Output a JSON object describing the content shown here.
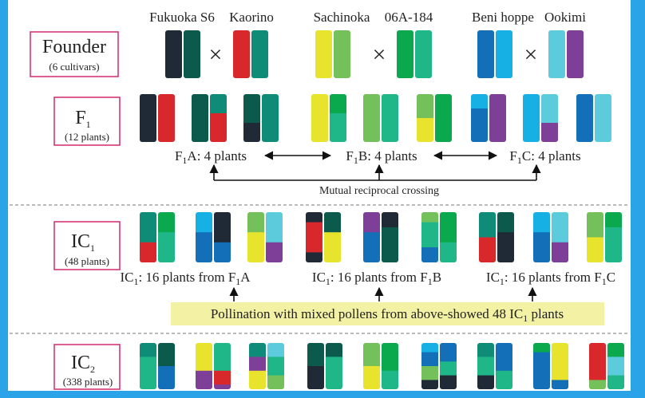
{
  "founder": {
    "label": "Founder",
    "count": "(6 cultivars)",
    "cross": "×",
    "cultivars": [
      "Fukuoka S6",
      "Kaorino",
      "Sachinoka",
      "06A-184",
      "Beni hoppe",
      "Ookimi"
    ]
  },
  "f1": {
    "label": {
      "main": "F",
      "sub": "1"
    },
    "count": "(12 plants)",
    "groups": [
      {
        "main": "F",
        "sub": "1",
        "rest": "A: 4 plants"
      },
      {
        "main": "F",
        "sub": "1",
        "rest": "B: 4 plants"
      },
      {
        "main": "F",
        "sub": "1",
        "rest": "C: 4 plants"
      }
    ],
    "crossing": "Mutual reciprocal crossing"
  },
  "ic1": {
    "label": {
      "main": "IC",
      "sub": "1"
    },
    "count": "(48 plants)",
    "groups": [
      {
        "main": "IC",
        "sub": "1",
        "mid": ": 16 plants from F",
        "sub2": "1",
        "rest": "A"
      },
      {
        "main": "IC",
        "sub": "1",
        "mid": ": 16 plants from F",
        "sub2": "1",
        "rest": "B"
      },
      {
        "main": "IC",
        "sub": "1",
        "mid": ": 16 plants from F",
        "sub2": "1",
        "rest": "C"
      }
    ],
    "pollination": {
      "main": "Pollination with mixed pollens from above-showed 48 IC",
      "sub": "1",
      "rest": " plants"
    }
  },
  "ic2": {
    "label": {
      "main": "IC",
      "sub": "2"
    },
    "count": "(338 plants)"
  }
}
